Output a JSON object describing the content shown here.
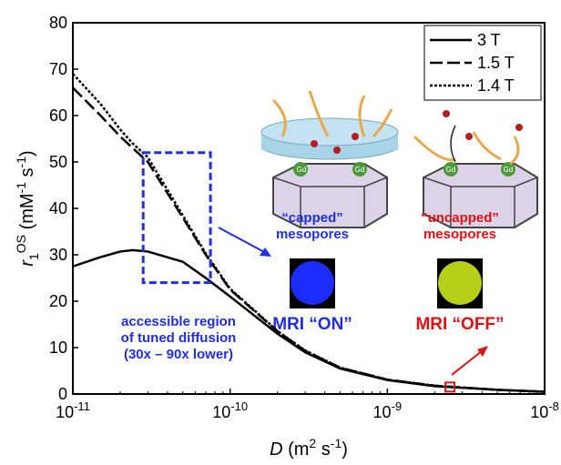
{
  "chart_data": {
    "type": "line",
    "xscale": "log",
    "xlabel_parts": [
      {
        "text": "D",
        "italic": true
      },
      {
        "text": " (m"
      },
      {
        "text": "2",
        "sup": true
      },
      {
        "text": " s"
      },
      {
        "text": "-1",
        "sup": true
      },
      {
        "text": ")"
      }
    ],
    "ylabel_parts": [
      {
        "text": "r",
        "italic": true
      },
      {
        "text": "1",
        "sub": true
      },
      {
        "text": "OS",
        "sup": true
      },
      {
        "text": " (mM"
      },
      {
        "text": "-1",
        "sup": true
      },
      {
        "text": " s"
      },
      {
        "text": "-1",
        "sup": true
      },
      {
        "text": ")"
      }
    ],
    "x": [
      1e-11,
      1.5e-11,
      2e-11,
      2.4e-11,
      3e-11,
      5e-11,
      7e-11,
      1e-10,
      2e-10,
      3e-10,
      5e-10,
      1e-09,
      2e-09,
      5e-09,
      1e-08
    ],
    "series": [
      {
        "name": "3 T",
        "color": "#000000",
        "dash": "solid",
        "values": [
          27.5,
          29.5,
          30.7,
          31,
          30.7,
          28.5,
          25,
          21,
          13,
          9,
          5.5,
          3,
          1.7,
          0.9,
          0.5
        ]
      },
      {
        "name": "1.5 T",
        "color": "#000000",
        "dash": "long",
        "values": [
          66,
          60,
          55.5,
          53,
          50,
          38,
          30,
          22.5,
          13.5,
          9.3,
          5.7,
          3.1,
          1.8,
          0.9,
          0.5
        ]
      },
      {
        "name": "1.4 T",
        "color": "#000000",
        "dash": "dotted",
        "values": [
          69,
          62.5,
          57,
          54,
          51,
          38.5,
          30.3,
          22.7,
          13.6,
          9.4,
          5.7,
          3.1,
          1.8,
          0.9,
          0.5
        ]
      }
    ],
    "xlim": [
      1e-11,
      1e-08
    ],
    "xticks": [
      {
        "value": 1e-11,
        "label": "10",
        "sup": "-11"
      },
      {
        "value": 1e-10,
        "label": "10",
        "sup": "-10"
      },
      {
        "value": 1e-09,
        "label": "10",
        "sup": "-9"
      },
      {
        "value": 1e-08,
        "label": "10",
        "sup": "-8"
      }
    ],
    "ylim": [
      0,
      80
    ],
    "yticks": [
      0,
      10,
      20,
      30,
      40,
      50,
      60,
      70,
      80
    ],
    "legend": "upper right",
    "region": {
      "x": [
        2.8e-11,
        7.5e-11
      ],
      "y": [
        24,
        52
      ],
      "color": "#1f2fe0"
    },
    "marker": {
      "x": 2.5e-09,
      "y": 1.5,
      "color": "#e01010"
    },
    "annotations": {
      "region_text": [
        "accessible region",
        "of tuned diffusion",
        "(30x – 90x lower)"
      ],
      "capped": [
        "“capped”",
        "mesopores"
      ],
      "uncapped": [
        "“uncapped”",
        "mesopores"
      ],
      "mri_on": "MRI “ON”",
      "mri_off": "MRI “OFF”",
      "gd": [
        "Gd",
        "Gd",
        "Gd",
        "Gd"
      ]
    }
  }
}
